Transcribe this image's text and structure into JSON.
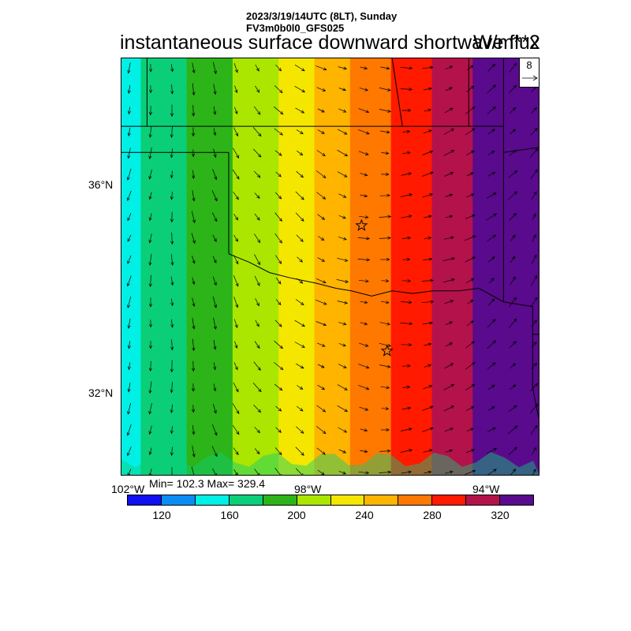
{
  "header": {
    "date_line": "2023/3/19/14UTC (8LT), Sunday",
    "model_line": "FV3m0b0l0_GFS025",
    "title": "instantaneous surface downward shortwave flux",
    "units": "W/m**2"
  },
  "stats": {
    "minmax": "Min= 102.3 Max= 329.4"
  },
  "vector_reference": {
    "label": "8"
  },
  "axes": {
    "lat_labels": [
      "36°N",
      "32°N"
    ],
    "lon_labels": [
      "102°W",
      "98°W",
      "94°W"
    ]
  },
  "colorbar": {
    "colors": [
      "#1010f0",
      "#0a8cf5",
      "#00f0e6",
      "#0acf78",
      "#2cb418",
      "#aae600",
      "#f5e600",
      "#ffb400",
      "#ff7800",
      "#ff1a00",
      "#b4124b",
      "#5a0a8c"
    ],
    "labels": [
      "120",
      "160",
      "200",
      "240",
      "280",
      "320"
    ]
  },
  "chart_data": {
    "type": "heatmap",
    "field": "instantaneous surface downward shortwave flux",
    "units": "W/m**2",
    "min": 102.3,
    "max": 329.4,
    "levels": [
      100,
      120,
      140,
      160,
      180,
      200,
      220,
      240,
      260,
      280,
      300,
      320,
      340
    ],
    "lat_range": [
      30.3,
      38.3
    ],
    "lon_range": [
      -102.1,
      -93.9
    ],
    "value_gradient": "increases west to east",
    "band_boundaries_lon": [
      -101.6,
      -100.7,
      -99.8,
      -98.9,
      -98.2,
      -97.5,
      -96.7,
      -95.9,
      -95.1,
      -94.4
    ],
    "markers": [
      {
        "lat": 35.1,
        "lon": -97.4
      },
      {
        "lat": 32.7,
        "lon": -96.9
      }
    ]
  }
}
